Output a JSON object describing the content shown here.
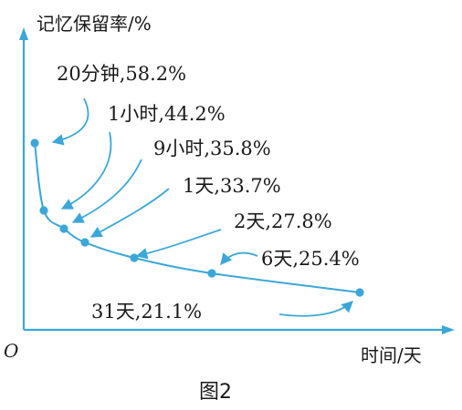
{
  "colors": {
    "curve": "#3ba7d9",
    "axis": "#3ba7d9",
    "text": "#1a1a1a"
  },
  "chart_data": {
    "type": "line",
    "title": "",
    "caption": "图2",
    "ylabel": "记忆保留率/%",
    "xlabel": "时间/天",
    "origin_label": "O",
    "grid": false,
    "legend": "none",
    "series": [
      {
        "values": [
          {
            "x": 0.0139,
            "y": 58.2,
            "label": "20分钟,58.2%"
          },
          {
            "x": 0.0417,
            "y": 44.2,
            "label": "1小时,44.2%"
          },
          {
            "x": 0.375,
            "y": 35.8,
            "label": "9小时,35.8%"
          },
          {
            "x": 1,
            "y": 33.7,
            "label": "1天,33.7%"
          },
          {
            "x": 2,
            "y": 27.8,
            "label": "2天,27.8%"
          },
          {
            "x": 6,
            "y": 25.4,
            "label": "6天,25.4%"
          },
          {
            "x": 31,
            "y": 21.1,
            "label": "31天,21.1%"
          }
        ]
      }
    ]
  }
}
